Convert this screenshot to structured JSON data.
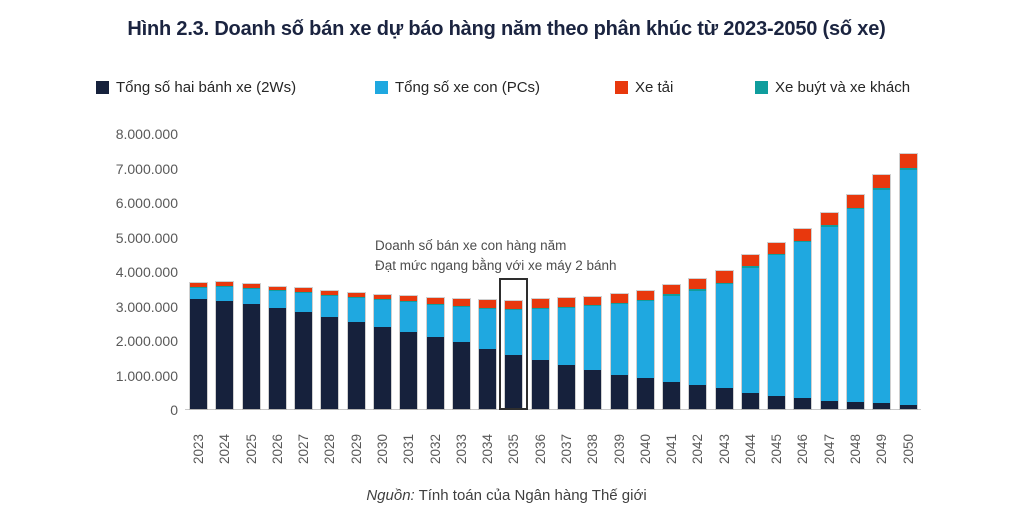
{
  "title": "Hình 2.3. Doanh số bán xe dự báo hàng năm theo phân khúc từ 2023-2050 (số xe)",
  "legend": [
    {
      "label": "Tổng số hai bánh xe (2Ws)",
      "color": "#16213C"
    },
    {
      "label": "Tổng số xe con (PCs)",
      "color": "#1FA8E0"
    },
    {
      "label": "Xe tải",
      "color": "#E8380D"
    },
    {
      "label": "Xe buýt và xe khách",
      "color": "#0F9D9D"
    }
  ],
  "annotation": {
    "line1": "Doanh số bán xe con hàng năm",
    "line2": "Đạt mức ngang bằng với xe máy 2 bánh"
  },
  "source": {
    "prefix": "Nguồn:",
    "text": " Tính toán của Ngân hàng Thế giới"
  },
  "chart_data": {
    "type": "bar",
    "stacked": true,
    "title": "Hình 2.3. Doanh số bán xe dự báo hàng năm theo phân khúc từ 2023-2050 (số xe)",
    "xlabel": "",
    "ylabel": "số xe",
    "ylim": [
      0,
      8000000
    ],
    "grid": false,
    "legend_position": "top",
    "y_ticks": [
      "8.000.000",
      "7.000.000",
      "6.000.000",
      "5.000.000",
      "4.000.000",
      "3.000.000",
      "2.000.000",
      "1.000.000",
      "0"
    ],
    "x": [
      "2023",
      "2024",
      "2025",
      "2026",
      "2027",
      "2028",
      "2029",
      "2030",
      "2031",
      "2032",
      "2033",
      "2034",
      "2035",
      "2036",
      "2037",
      "2038",
      "2039",
      "2040",
      "2041",
      "2042",
      "2043",
      "2044",
      "2045",
      "2046",
      "2047",
      "2048",
      "2049",
      "2050"
    ],
    "series": [
      {
        "name": "Tổng số hai bánh xe (2Ws)",
        "color": "#16213C",
        "values": [
          3200000,
          3130000,
          3050000,
          2930000,
          2800000,
          2660000,
          2520000,
          2370000,
          2230000,
          2090000,
          1950000,
          1740000,
          1580000,
          1410000,
          1280000,
          1120000,
          1000000,
          890000,
          780000,
          700000,
          620000,
          470000,
          380000,
          310000,
          240000,
          200000,
          160000,
          130000
        ]
      },
      {
        "name": "Tổng số xe con (PCs)",
        "color": "#1FA8E0",
        "values": [
          300000,
          400000,
          430000,
          490000,
          550000,
          620000,
          700000,
          790000,
          860000,
          930000,
          1010000,
          1170000,
          1290000,
          1500000,
          1660000,
          1860000,
          2040000,
          2240000,
          2500000,
          2730000,
          3000000,
          3630000,
          4070000,
          4520000,
          5040000,
          5590000,
          6190000,
          6800000
        ]
      },
      {
        "name": "Xe buýt và xe khách",
        "color": "#0F9D9D",
        "values": [
          20000,
          20000,
          20000,
          20000,
          20000,
          20000,
          20000,
          20000,
          30000,
          30000,
          30000,
          30000,
          30000,
          30000,
          30000,
          30000,
          30000,
          30000,
          40000,
          40000,
          40000,
          40000,
          40000,
          50000,
          50000,
          50000,
          50000,
          50000
        ]
      },
      {
        "name": "Xe tải",
        "color": "#E8380D",
        "values": [
          110000,
          120000,
          110000,
          100000,
          130000,
          120000,
          120000,
          120000,
          150000,
          170000,
          200000,
          230000,
          240000,
          240000,
          240000,
          240000,
          260000,
          260000,
          280000,
          300000,
          340000,
          330000,
          330000,
          330000,
          350000,
          360000,
          380000,
          400000
        ]
      }
    ],
    "stack_order_bottom_to_top": [
      "Tổng số hai bánh xe (2Ws)",
      "Tổng số xe con (PCs)",
      "Xe buýt và xe khách",
      "Xe tải"
    ],
    "highlight": {
      "year": "2035",
      "top_value": 3720000
    }
  },
  "layout": {
    "legend_offsets": [
      96,
      375,
      615,
      755
    ]
  }
}
